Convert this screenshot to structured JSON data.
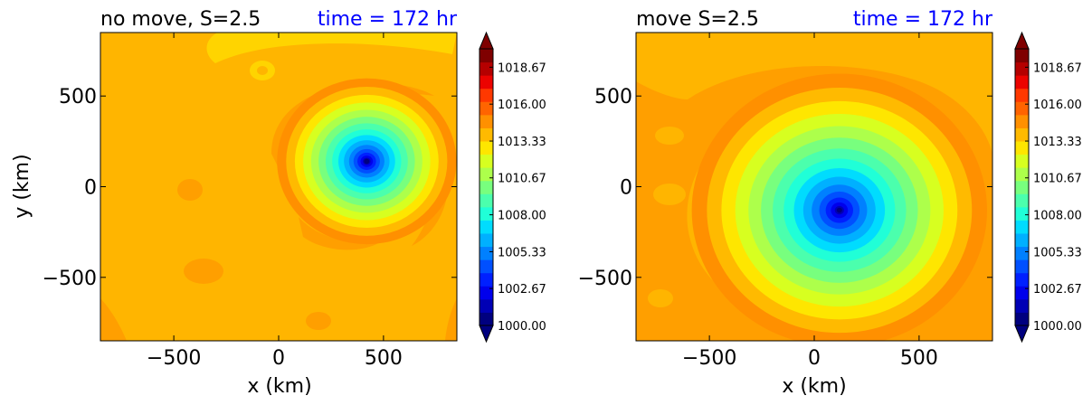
{
  "chart_data": [
    {
      "type": "heatmap",
      "title_left": "no move, S=2.5",
      "title_right": "time = 172 hr",
      "title_right_color": "#0000ff",
      "xlabel": "x (km)",
      "ylabel": "y (km)",
      "xlim": [
        -850,
        850
      ],
      "ylim": [
        -850,
        850
      ],
      "xticks": [
        -500,
        0,
        500
      ],
      "yticks": [
        -500,
        0,
        500
      ],
      "xtick_labels": [
        "−500",
        "0",
        "500"
      ],
      "ytick_labels": [
        "−500",
        "0",
        "500"
      ],
      "grid": false,
      "field": {
        "background_value": 1015.0,
        "center": [
          420,
          140
        ],
        "min_value": 1000.0,
        "radius_scale": 120
      },
      "colorbar": {
        "min": 1000.0,
        "max": 1020.0,
        "extend": "both",
        "tick_values": [
          1000.0,
          1002.67,
          1005.33,
          1008.0,
          1010.67,
          1013.33,
          1016.0,
          1018.67
        ],
        "tick_labels": [
          "1000.00",
          "1002.67",
          "1005.33",
          "1008.00",
          "1010.67",
          "1013.33",
          "1016.00",
          "1018.67"
        ]
      }
    },
    {
      "type": "heatmap",
      "title_left": "move S=2.5",
      "title_right": "time = 172 hr",
      "title_right_color": "#0000ff",
      "xlabel": "x (km)",
      "ylabel": "",
      "xlim": [
        -850,
        850
      ],
      "ylim": [
        -850,
        850
      ],
      "xticks": [
        -500,
        0,
        500
      ],
      "yticks": [
        -500,
        0,
        500
      ],
      "xtick_labels": [
        "−500",
        "0",
        "500"
      ],
      "ytick_labels": [
        "−500",
        "0",
        "500"
      ],
      "grid": false,
      "field": {
        "background_value": 1015.0,
        "center": [
          120,
          -130
        ],
        "min_value": 1000.0,
        "radius_scale": 200
      },
      "colorbar": {
        "min": 1000.0,
        "max": 1020.0,
        "extend": "both",
        "tick_values": [
          1000.0,
          1002.67,
          1005.33,
          1008.0,
          1010.67,
          1013.33,
          1016.0,
          1018.67
        ],
        "tick_labels": [
          "1000.00",
          "1002.67",
          "1005.33",
          "1008.00",
          "1010.67",
          "1013.33",
          "1016.00",
          "1018.67"
        ]
      }
    }
  ],
  "palette": [
    "#00007f",
    "#0000b5",
    "#0000ec",
    "#0020ff",
    "#0050ff",
    "#0080ff",
    "#00b0ff",
    "#00dcfe",
    "#20ffd7",
    "#4bffad",
    "#78ff7e",
    "#adff4b",
    "#d7ff20",
    "#fee600",
    "#ffba00",
    "#ff9000",
    "#ff6400",
    "#ff3800",
    "#ec0300",
    "#b50000",
    "#7f0000"
  ]
}
